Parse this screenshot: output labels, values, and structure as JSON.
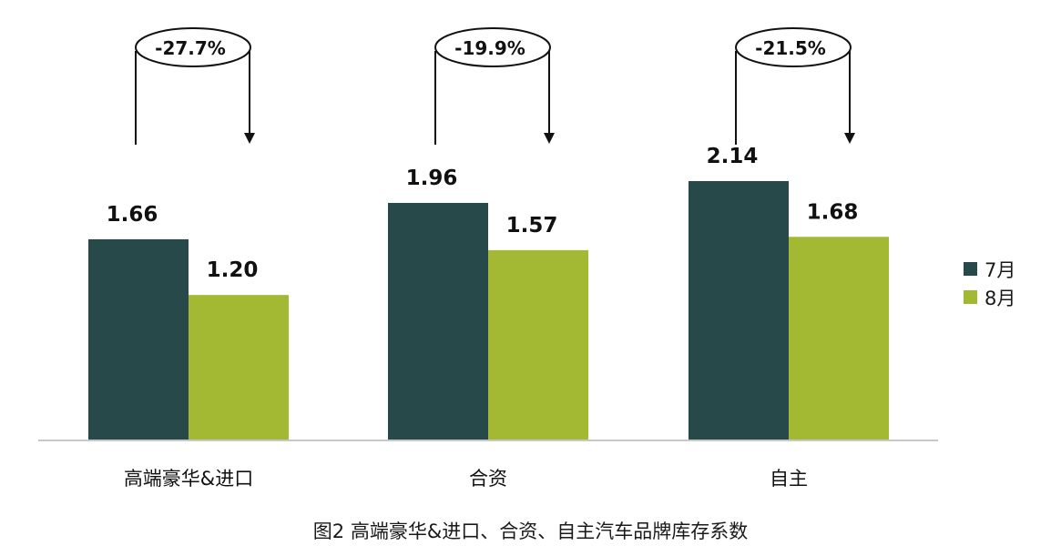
{
  "chart_data": {
    "type": "bar",
    "categories": [
      "高端豪华&进口",
      "合资",
      "自主"
    ],
    "series": [
      {
        "name": "7月",
        "values": [
          1.66,
          1.96,
          2.14
        ],
        "labels": [
          "1.66",
          "1.96",
          "2.14"
        ]
      },
      {
        "name": "8月",
        "values": [
          1.2,
          1.57,
          1.68
        ],
        "labels": [
          "1.20",
          "1.57",
          "1.68"
        ]
      }
    ],
    "changes": [
      "-27.7%",
      "-19.9%",
      "-21.5%"
    ],
    "ylim": [
      0,
      2.14
    ],
    "legend_position": "right",
    "grid": false
  },
  "colors": {
    "series_1": "#27494a",
    "series_2": "#a3b833",
    "axis": "#c8c8c8",
    "text": "#111111"
  },
  "caption": "图2 高端豪华&进口、合资、自主汽车品牌库存系数"
}
